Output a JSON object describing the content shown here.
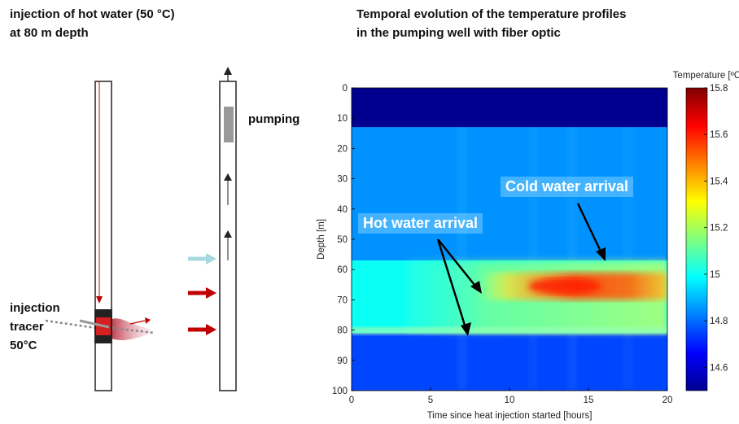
{
  "left": {
    "title_line1": "injection of hot water (50 °C)",
    "title_line2": "at 80 m depth",
    "injection_label": [
      "injection",
      "tracer",
      "50°C"
    ],
    "pumping_label": "pumping"
  },
  "right": {
    "title_line1": "Temporal evolution of the temperature profiles",
    "title_line2": "in the pumping well with fiber optic"
  },
  "annotations": {
    "cold": "Cold water arrival",
    "hot": "Hot water arrival"
  },
  "colors": {
    "red_arrow": "#c00000",
    "cyan_arrow": "#a6d8e0",
    "injection_red": "#d42020"
  },
  "chart_data": {
    "type": "heatmap",
    "xlabel": "Time since heat injection started [hours]",
    "ylabel": "Depth [m]",
    "xlim": [
      0,
      20
    ],
    "ylim": [
      100,
      0
    ],
    "xticks": [
      "0",
      "5",
      "10",
      "15",
      "20"
    ],
    "yticks": [
      "0",
      "10",
      "20",
      "30",
      "40",
      "50",
      "60",
      "70",
      "80",
      "90",
      "100"
    ],
    "colorbar": {
      "label": "Temperature [ºC]",
      "min": 14.5,
      "max": 15.8,
      "ticks": [
        "14.6",
        "14.8",
        "15",
        "15.2",
        "15.4",
        "15.6",
        "15.8"
      ]
    },
    "bands": [
      {
        "depth_from": 0,
        "depth_to": 13,
        "temperature": 14.5
      },
      {
        "depth_from": 13,
        "depth_to": 57,
        "temperature": 14.85
      },
      {
        "depth_from": 57,
        "depth_to": 81,
        "temperature": 15.0
      },
      {
        "depth_from": 81,
        "depth_to": 100,
        "temperature": 14.75
      }
    ],
    "hot_zone": {
      "depth_from": 61,
      "depth_to": 70,
      "time_from": 8,
      "time_to": 20,
      "peak_temperature": 15.6
    }
  }
}
